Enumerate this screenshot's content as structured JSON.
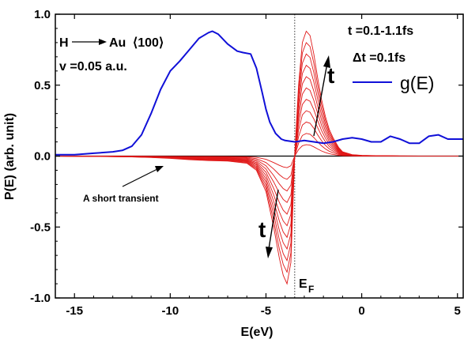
{
  "chart_data": {
    "type": "line",
    "xlabel": "E(eV)",
    "ylabel": "P(E) (arb. unit)",
    "xlim": [
      -16,
      5.3
    ],
    "ylim": [
      -1.0,
      1.0
    ],
    "xticks": [
      -15,
      -10,
      -5,
      0,
      5
    ],
    "yticks": [
      -1.0,
      -0.5,
      0.0,
      0.5,
      1.0
    ],
    "xtick_labels": [
      "-15",
      "-10",
      "-5",
      "0",
      "5"
    ],
    "ytick_labels": [
      "-1.0",
      "-0.5",
      "0.0",
      "0.5",
      "1.0"
    ],
    "fermi_level": -3.5,
    "annotations": {
      "system_h": "H",
      "system_au": "Au",
      "system_facet": "⟨100⟩",
      "velocity": "v =0.05 a.u.",
      "time_range": "t =0.1-1.1fs",
      "time_step": "Δt =0.1fs",
      "t_label_top": "t",
      "t_label_bottom": "t",
      "transient": "A short transient",
      "fermi_main": "E",
      "fermi_sub": "F"
    },
    "legend": {
      "label": "g(E)",
      "position": "top-right"
    },
    "colors": {
      "dos": "#1010d8",
      "transient": "#e01818",
      "zero": "#000000"
    },
    "series": [
      {
        "name": "g(E)",
        "x": [
          -16,
          -15,
          -14,
          -13,
          -12.5,
          -12,
          -11.5,
          -11,
          -10.5,
          -10,
          -9.5,
          -9,
          -8.5,
          -8,
          -7.8,
          -7.5,
          -7,
          -6.5,
          -6.2,
          -5.8,
          -5.5,
          -5.2,
          -5,
          -4.8,
          -4.5,
          -4.2,
          -4,
          -3.5,
          -3,
          -2.5,
          -2,
          -1.5,
          -1,
          -0.5,
          0,
          0.5,
          1,
          1.5,
          2,
          2.5,
          3,
          3.5,
          4,
          4.5,
          5,
          5.3
        ],
        "y": [
          0.01,
          0.01,
          0.02,
          0.03,
          0.04,
          0.07,
          0.15,
          0.3,
          0.47,
          0.6,
          0.67,
          0.75,
          0.83,
          0.87,
          0.88,
          0.86,
          0.79,
          0.74,
          0.73,
          0.72,
          0.62,
          0.45,
          0.33,
          0.24,
          0.16,
          0.12,
          0.11,
          0.1,
          0.11,
          0.1,
          0.09,
          0.1,
          0.12,
          0.13,
          0.12,
          0.1,
          0.1,
          0.14,
          0.12,
          0.09,
          0.09,
          0.14,
          0.15,
          0.12,
          0.12,
          0.12
        ]
      }
    ],
    "transient_series": {
      "t_values_fs": [
        0.1,
        0.2,
        0.3,
        0.4,
        0.5,
        0.6,
        0.7,
        0.8,
        0.9,
        1.0,
        1.1
      ],
      "x": [
        -16,
        -14,
        -12,
        -11,
        -10,
        -9,
        -8,
        -7,
        -6,
        -5.5,
        -5,
        -4.6,
        -4.3,
        -4.1,
        -3.9,
        -3.7,
        -3.5,
        -3.3,
        -3.1,
        -2.9,
        -2.7,
        -2.5,
        -2.3,
        -2.1,
        -1.9,
        -1.7,
        -1.5,
        -1.2,
        -1,
        -0.5,
        0,
        1,
        2,
        3,
        4,
        5.3
      ],
      "envelope_y": [
        0,
        -0.002,
        -0.006,
        -0.01,
        -0.016,
        -0.025,
        -0.032,
        -0.035,
        -0.05,
        -0.1,
        -0.25,
        -0.5,
        -0.72,
        -0.84,
        -0.9,
        -0.75,
        0,
        0.5,
        0.8,
        0.88,
        0.85,
        0.72,
        0.55,
        0.4,
        0.28,
        0.19,
        0.13,
        0.06,
        0.03,
        0.01,
        0.005,
        0.002,
        0.001,
        0,
        0,
        0
      ]
    }
  }
}
